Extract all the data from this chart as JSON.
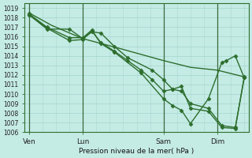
{
  "title": "",
  "xlabel": "Pression niveau de la mer( hPa )",
  "bg_color": "#c5ebe5",
  "grid_color": "#a8d8d0",
  "line_color": "#2d6e2d",
  "ylim": [
    1006,
    1019.5
  ],
  "yticks": [
    1006,
    1007,
    1008,
    1009,
    1010,
    1011,
    1012,
    1013,
    1014,
    1015,
    1016,
    1017,
    1018,
    1019
  ],
  "xtick_labels": [
    "Ven",
    "Lun",
    "Sam",
    "Dim"
  ],
  "xtick_positions": [
    0,
    24,
    60,
    84
  ],
  "xlim": [
    -2,
    98
  ],
  "vlines": [
    0,
    24,
    60,
    84
  ],
  "series": [
    {
      "x": [
        0,
        10,
        24,
        40,
        60,
        72,
        84,
        96
      ],
      "y": [
        1018.5,
        1017.2,
        1015.8,
        1014.8,
        1013.5,
        1012.8,
        1012.5,
        1011.8
      ],
      "marker": null,
      "ms": 0,
      "lw": 1.0
    },
    {
      "x": [
        0,
        8,
        18,
        24,
        28,
        32,
        38,
        44,
        55,
        60,
        64,
        68,
        72,
        80,
        86,
        92,
        96
      ],
      "y": [
        1018.3,
        1016.8,
        1016.8,
        1015.8,
        1016.5,
        1016.4,
        1015.0,
        1013.8,
        1012.5,
        1011.5,
        1010.5,
        1010.3,
        1009.0,
        1008.5,
        1006.7,
        1006.5,
        1011.7
      ],
      "marker": "D",
      "ms": 2.5,
      "lw": 1.0
    },
    {
      "x": [
        0,
        8,
        18,
        24,
        28,
        32,
        38,
        44,
        50,
        55,
        60,
        64,
        68,
        72,
        80,
        86,
        92,
        96
      ],
      "y": [
        1018.3,
        1016.9,
        1015.6,
        1015.7,
        1016.6,
        1015.4,
        1014.5,
        1013.5,
        1012.5,
        1011.5,
        1010.3,
        1010.5,
        1010.8,
        1008.5,
        1008.2,
        1006.5,
        1006.4,
        1011.8
      ],
      "marker": "D",
      "ms": 2.5,
      "lw": 1.0
    },
    {
      "x": [
        0,
        8,
        18,
        24,
        28,
        32,
        38,
        50,
        60,
        64,
        68,
        72,
        80,
        86,
        88,
        92,
        96
      ],
      "y": [
        1018.4,
        1017.0,
        1015.9,
        1015.9,
        1016.7,
        1015.3,
        1014.4,
        1012.2,
        1009.5,
        1008.8,
        1008.3,
        1006.9,
        1009.5,
        1013.3,
        1013.5,
        1014.0,
        1011.7
      ],
      "marker": "D",
      "ms": 2.5,
      "lw": 1.0
    }
  ]
}
